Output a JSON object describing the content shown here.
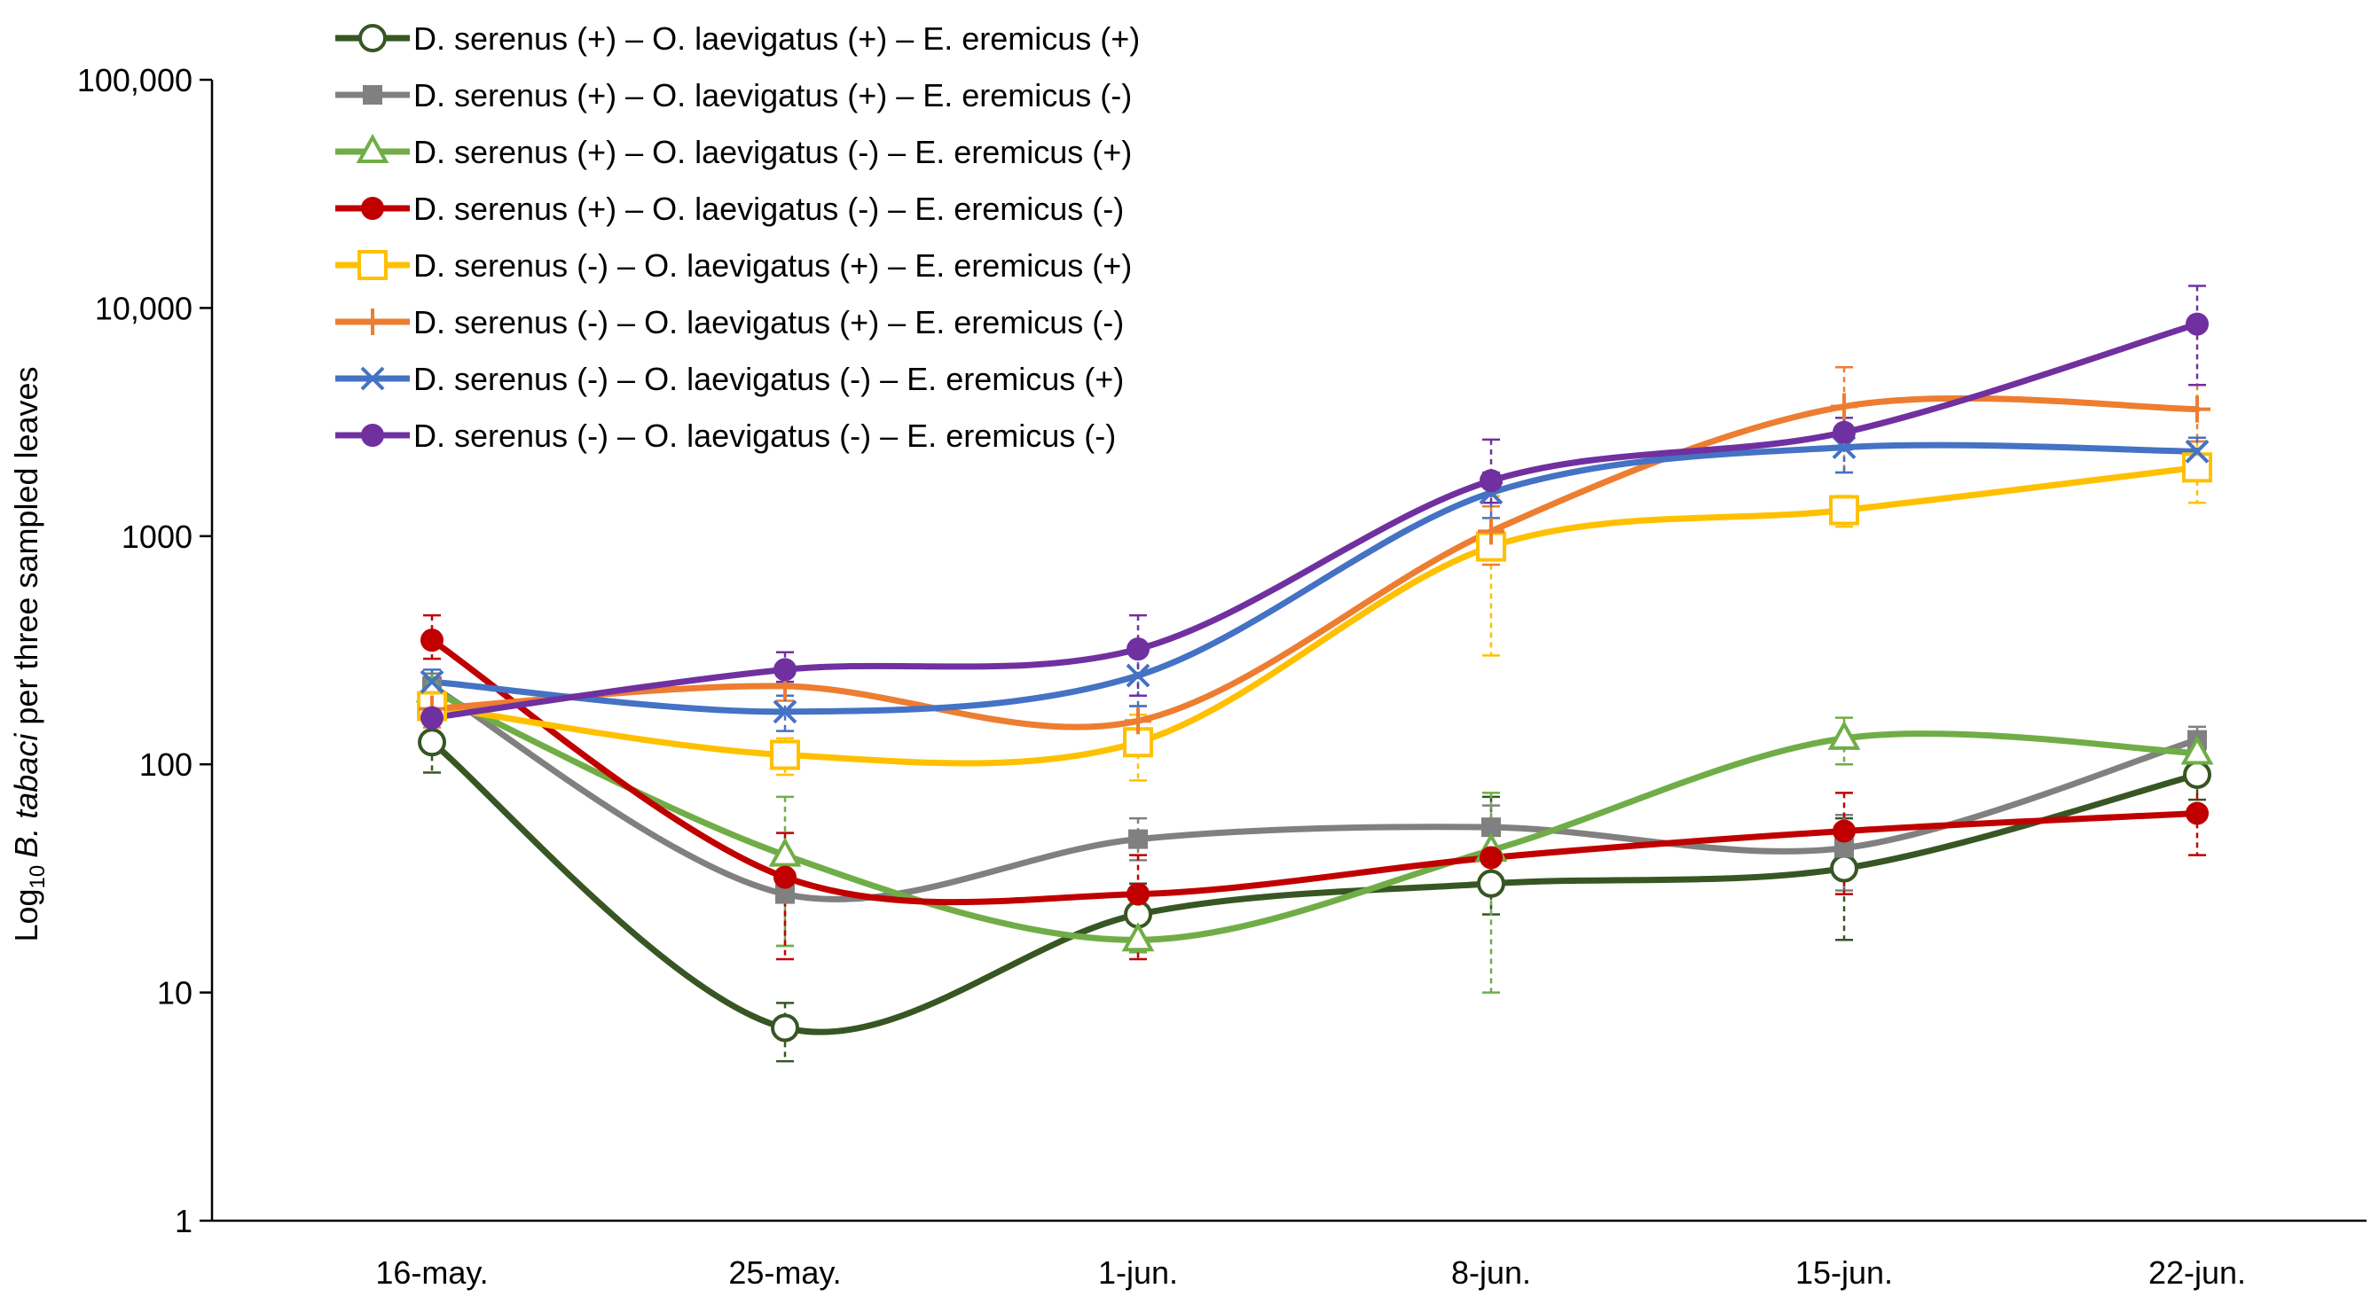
{
  "chart_data": {
    "type": "line",
    "title": "",
    "xlabel": "",
    "ylabel_prefix": "Log",
    "ylabel_subscript": "10",
    "ylabel_species": "B. tabaci",
    "ylabel_suffix": "per three sampled leaves",
    "yscale": "log",
    "ylim": [
      1,
      100000
    ],
    "ytick_values": [
      1,
      10,
      100,
      1000,
      10000,
      100000
    ],
    "ytick_labels": [
      "1",
      "10",
      "100",
      "1000",
      "10,000",
      "100,000"
    ],
    "categories": [
      "16-may.",
      "25-may.",
      "1-jun.",
      "8-jun.",
      "15-jun.",
      "22-jun."
    ],
    "legend_position": "top-left",
    "series": [
      {
        "name": "D. serenus (+) – O. laevigatus (+) – E. eremicus (+)",
        "color": "#375623",
        "marker": "circle-open",
        "values": [
          125,
          7,
          22,
          30,
          35,
          90
        ],
        "err_low": [
          92,
          5,
          15,
          22,
          17,
          70
        ],
        "err_high": [
          240,
          9,
          30,
          72,
          58,
          115
        ]
      },
      {
        "name": "D. serenus (+) – O. laevigatus (+) – E. eremicus (-)",
        "color": "#808080",
        "marker": "square",
        "values": [
          220,
          27,
          47,
          53,
          43,
          128
        ],
        "err_low": [
          200,
          16,
          38,
          40,
          28,
          110
        ],
        "err_high": [
          250,
          38,
          58,
          66,
          60,
          146
        ]
      },
      {
        "name": "D. serenus (+) – O. laevigatus (-) – E. eremicus (+)",
        "color": "#70AD47",
        "marker": "triangle-open",
        "values": [
          210,
          40,
          17,
          42,
          130,
          112
        ],
        "err_low": [
          185,
          16,
          15,
          10,
          100,
          97
        ],
        "err_high": [
          235,
          72,
          20,
          75,
          160,
          130
        ]
      },
      {
        "name": "D. serenus (+) – O. laevigatus (-) – E. eremicus (-)",
        "color": "#C00000",
        "marker": "circle",
        "values": [
          350,
          32,
          27,
          39,
          51,
          61
        ],
        "err_low": [
          290,
          14,
          14,
          28,
          27,
          40
        ],
        "err_high": [
          450,
          50,
          40,
          50,
          75,
          82
        ]
      },
      {
        "name": "D. serenus (-) – O. laevigatus (+) – E. eremicus (+)",
        "color": "#FFC000",
        "marker": "square-open",
        "values": [
          180,
          110,
          125,
          900,
          1300,
          2000
        ],
        "err_low": [
          150,
          90,
          85,
          300,
          1100,
          1400
        ],
        "err_high": [
          210,
          130,
          165,
          1500,
          1500,
          2600
        ]
      },
      {
        "name": "D. serenus (-) – O. laevigatus (+) – E. eremicus (-)",
        "color": "#ED7D31",
        "marker": "plus",
        "values": [
          175,
          220,
          155,
          1050,
          3700,
          3600
        ],
        "err_low": [
          145,
          190,
          130,
          750,
          1900,
          2600
        ],
        "err_high": [
          205,
          250,
          180,
          1350,
          5500,
          4600
        ]
      },
      {
        "name": "D. serenus (-) – O. laevigatus (-) – E. eremicus (+)",
        "color": "#4472C4",
        "marker": "x",
        "values": [
          230,
          170,
          245,
          1550,
          2450,
          2350
        ],
        "err_low": [
          200,
          140,
          180,
          1200,
          1900,
          2000
        ],
        "err_high": [
          260,
          200,
          310,
          1900,
          3000,
          2700
        ]
      },
      {
        "name": "D. serenus (-) – O. laevigatus (-) – E. eremicus (-)",
        "color": "#7030A0",
        "marker": "circle",
        "values": [
          160,
          260,
          320,
          1750,
          2850,
          8500
        ],
        "err_low": [
          130,
          230,
          200,
          1400,
          2400,
          4600
        ],
        "err_high": [
          190,
          310,
          450,
          2650,
          3300,
          12500
        ]
      }
    ]
  }
}
